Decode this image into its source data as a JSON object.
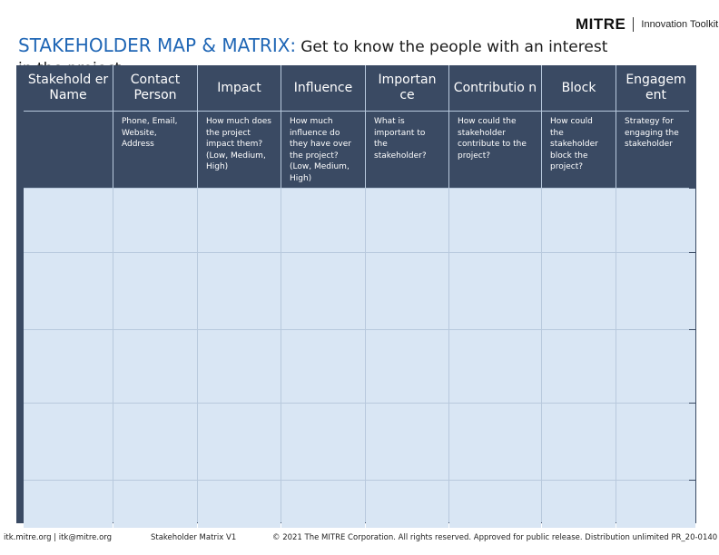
{
  "logo": {
    "brand": "MITRE",
    "toolkit": "Innovation Toolkit"
  },
  "title": {
    "main": "STAKEHOLDER MAP & MATRIX:",
    "sub": "Get to know the people with an interest",
    "sub_line2": "in the project"
  },
  "table": {
    "headers": [
      "Stakehold er Name",
      "Contact Person",
      "Impact",
      "Influence",
      "Importan ce",
      "Contributio n",
      "Block",
      "Engagem ent"
    ],
    "descriptions": [
      "",
      "Phone, Email, Website, Address",
      "How much does the project impact them? (Low, Medium, High)",
      "How much influence do they have over the project? (Low, Medium, High)",
      "What is important to the stakeholder?",
      "How could the stakeholder contribute to the project?",
      "How could the stakeholder block the project?",
      "Strategy for engaging the stakeholder"
    ],
    "empty_rows": 5
  },
  "footer": {
    "contact": "itk.mitre.org | itk@mitre.org",
    "version": "Stakeholder Matrix V1",
    "copyright": "© 2021 The MITRE Corporation. All rights reserved. Approved for public release. Distribution unlimited PR_20-0140"
  }
}
